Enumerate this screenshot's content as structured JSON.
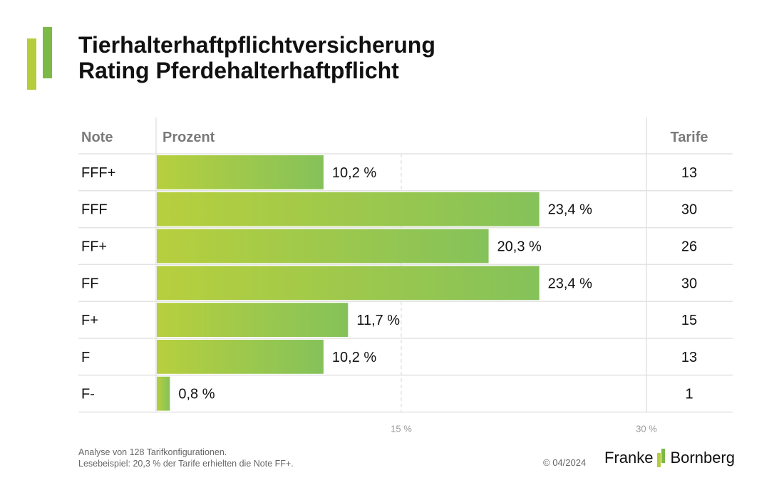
{
  "title": {
    "line1": "Tierhalterhaftpflichtversicherung",
    "line2": "Rating Pferdehalterhaftpflicht"
  },
  "colors": {
    "bar_start": "#b7cf3e",
    "bar_end": "#85c25a",
    "grid": "#e3e3e3",
    "header_text": "#7a7a7a",
    "logo_light": "#b5cc3c",
    "logo_dark": "#7cba48"
  },
  "chart_data": {
    "type": "bar",
    "orientation": "horizontal",
    "column_headers": {
      "note": "Note",
      "percent": "Prozent",
      "count": "Tarife"
    },
    "categories": [
      "FFF+",
      "FFF",
      "FF+",
      "FF",
      "F+",
      "F",
      "F-"
    ],
    "values": [
      10.2,
      23.4,
      20.3,
      23.4,
      11.7,
      10.2,
      0.8
    ],
    "value_labels": [
      "10,2 %",
      "23,4 %",
      "20,3 %",
      "23,4 %",
      "11,7 %",
      "10,2 %",
      "0,8 %"
    ],
    "counts": [
      "13",
      "30",
      "26",
      "30",
      "15",
      "13",
      "1"
    ],
    "xlim": [
      0,
      30
    ],
    "ticks": [
      15,
      30
    ],
    "tick_labels": [
      "15 %",
      "30 %"
    ],
    "unit": "%"
  },
  "footer": {
    "line1": "Analyse von 128 Tarifkonfigurationen.",
    "line2": "Lesebeispiel: 20,3 % der Tarife erhielten die Note FF+."
  },
  "copyright": "© 04/2024",
  "brand": {
    "left": "Franke",
    "right": "Bornberg"
  }
}
